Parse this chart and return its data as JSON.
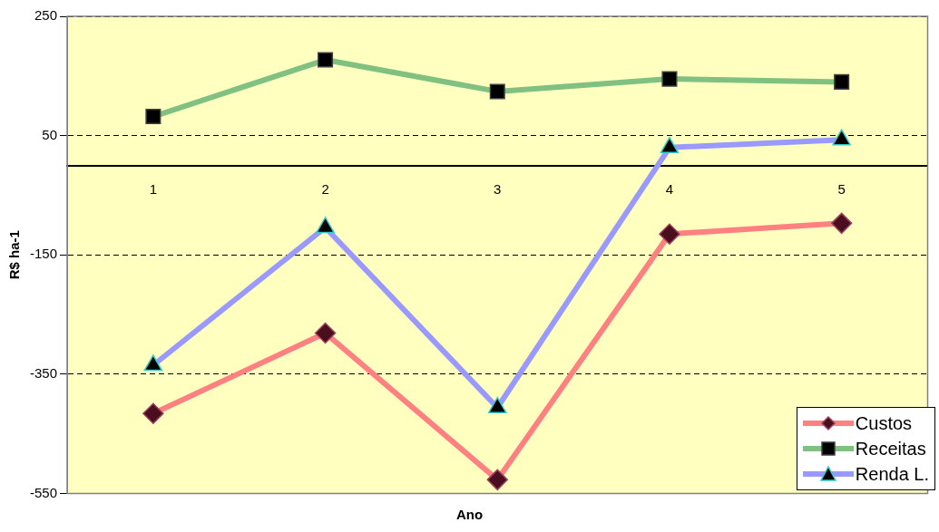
{
  "chart_data": {
    "type": "line",
    "xlabel": "Ano",
    "ylabel": "R$ ha-1",
    "categories": [
      "1",
      "2",
      "3",
      "4",
      "5"
    ],
    "series": [
      {
        "name": "Custos",
        "color": "#ff8080",
        "marker": "diamond",
        "values": [
          -416,
          -281,
          -527,
          -115,
          -97
        ]
      },
      {
        "name": "Receitas",
        "color": "#80c080",
        "marker": "square",
        "values": [
          82,
          177,
          124,
          145,
          140
        ]
      },
      {
        "name": "Renda L.",
        "color": "#9999ff",
        "marker": "triangle",
        "values": [
          -335,
          -104,
          -406,
          30,
          43
        ]
      }
    ],
    "ylim": [
      -550,
      250
    ],
    "yticks": [
      -550,
      -350,
      -150,
      50,
      250
    ],
    "grid": "y",
    "legend": "bottom right",
    "line_style": "solid"
  }
}
